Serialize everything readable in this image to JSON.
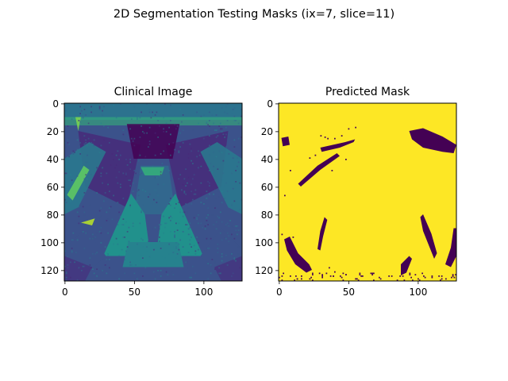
{
  "figure": {
    "suptitle": "2D Segmentation Testing Masks (ix=7, slice=11)"
  },
  "chart_data": [
    {
      "type": "heatmap",
      "title": "Clinical Image",
      "colormap": "viridis",
      "image_shape": [
        128,
        128
      ],
      "xlim": [
        -0.5,
        127.5
      ],
      "ylim": [
        127.5,
        -0.5
      ],
      "xticks": [
        0,
        50,
        100
      ],
      "yticks": [
        0,
        20,
        40,
        60,
        80,
        100,
        120
      ],
      "grid": false,
      "description_values": "MRI pelvic slice; intensity values not labeled"
    },
    {
      "type": "heatmap",
      "title": "Predicted Mask",
      "colormap": "viridis",
      "image_shape": [
        128,
        128
      ],
      "xlim": [
        -0.5,
        127.5
      ],
      "ylim": [
        127.5,
        -0.5
      ],
      "xticks": [
        0,
        50,
        100
      ],
      "yticks": [
        0,
        20,
        40,
        60,
        80,
        100,
        120
      ],
      "grid": false,
      "values_range": [
        0,
        1
      ]
    }
  ],
  "colors": {
    "viridis_dark": "#440154",
    "viridis_mid": "#21918c",
    "viridis_teal": "#3b528b",
    "viridis_green": "#5ec962",
    "viridis_yellow": "#fde725"
  }
}
